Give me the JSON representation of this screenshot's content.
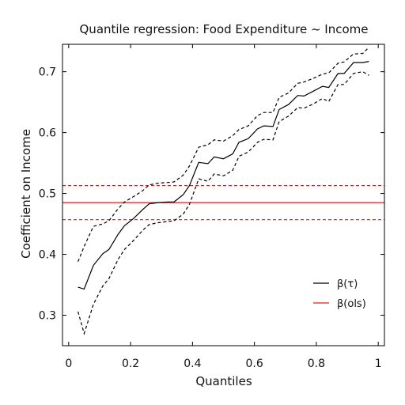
{
  "chart_data": {
    "type": "line",
    "title": "Quantile regression: Food Expenditure ~ Income",
    "xlabel": "Quantiles",
    "ylabel": "Coefficient on Income",
    "xlim": [
      -0.02,
      1.02
    ],
    "ylim": [
      0.25,
      0.745
    ],
    "xticks": [
      0,
      0.2,
      0.4,
      0.6,
      0.8,
      1
    ],
    "xtick_labels": [
      "0",
      "0.2",
      "0.4",
      "0.6",
      "0.8",
      "1"
    ],
    "yticks": [
      0.3,
      0.4,
      0.5,
      0.6,
      0.7
    ],
    "ytick_labels": [
      "0.3",
      "0.4",
      "0.5",
      "0.6",
      "0.7"
    ],
    "grid": false,
    "legend_position": "bottom-right",
    "x": [
      0.03,
      0.05,
      0.08,
      0.11,
      0.13,
      0.16,
      0.18,
      0.21,
      0.24,
      0.26,
      0.29,
      0.32,
      0.34,
      0.37,
      0.39,
      0.42,
      0.45,
      0.47,
      0.5,
      0.53,
      0.55,
      0.58,
      0.61,
      0.63,
      0.66,
      0.68,
      0.71,
      0.74,
      0.76,
      0.79,
      0.82,
      0.84,
      0.87,
      0.89,
      0.92,
      0.95,
      0.97
    ],
    "series": [
      {
        "name": "β(τ)",
        "color": "#000000",
        "dash": "solid",
        "values": [
          0.346,
          0.343,
          0.382,
          0.401,
          0.408,
          0.433,
          0.447,
          0.459,
          0.474,
          0.483,
          0.485,
          0.486,
          0.486,
          0.498,
          0.513,
          0.551,
          0.549,
          0.56,
          0.557,
          0.565,
          0.584,
          0.59,
          0.606,
          0.611,
          0.61,
          0.638,
          0.646,
          0.661,
          0.66,
          0.668,
          0.676,
          0.674,
          0.697,
          0.697,
          0.715,
          0.715,
          0.717
        ]
      },
      {
        "name": "",
        "color": "#000000",
        "dash": "dashed",
        "values": [
          0.388,
          0.413,
          0.446,
          0.45,
          0.455,
          0.475,
          0.486,
          0.495,
          0.505,
          0.514,
          0.517,
          0.518,
          0.519,
          0.53,
          0.545,
          0.576,
          0.58,
          0.588,
          0.586,
          0.595,
          0.605,
          0.611,
          0.628,
          0.633,
          0.633,
          0.658,
          0.665,
          0.681,
          0.683,
          0.689,
          0.696,
          0.698,
          0.714,
          0.716,
          0.729,
          0.73,
          0.74
        ]
      },
      {
        "name": "",
        "color": "#000000",
        "dash": "dashed",
        "values": [
          0.306,
          0.27,
          0.318,
          0.348,
          0.36,
          0.392,
          0.408,
          0.423,
          0.44,
          0.449,
          0.452,
          0.454,
          0.455,
          0.466,
          0.482,
          0.524,
          0.52,
          0.532,
          0.529,
          0.538,
          0.561,
          0.568,
          0.584,
          0.589,
          0.588,
          0.618,
          0.627,
          0.641,
          0.64,
          0.647,
          0.656,
          0.651,
          0.679,
          0.679,
          0.697,
          0.7,
          0.694
        ]
      }
    ],
    "hlines": [
      {
        "name": "β(ols)",
        "color": "#e31a1c",
        "dash": "solid",
        "y": 0.485
      },
      {
        "name": "",
        "color": "#e31a1c",
        "dash": "dashed",
        "y": 0.513
      },
      {
        "name": "",
        "color": "#e31a1c",
        "dash": "dashed",
        "y": 0.457
      }
    ],
    "legend": [
      {
        "label": "β(τ)",
        "color": "#000000"
      },
      {
        "label": "β(ols)",
        "color": "#e31a1c"
      }
    ]
  }
}
